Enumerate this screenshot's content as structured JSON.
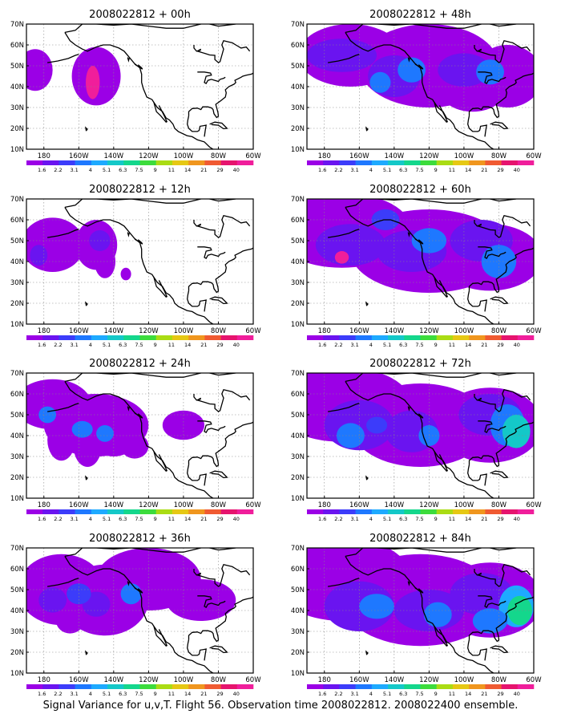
{
  "figure": {
    "caption": "Signal Variance for u,v,T. Flight 56. Observation time 2008022812. 2008022400 ensemble.",
    "colorbar_labels": [
      "1.6",
      "2.2",
      "3.1",
      "4",
      "5.1",
      "6.3",
      "7.5",
      "9",
      "11",
      "14",
      "21",
      "29",
      "40"
    ],
    "colorbar_colors": [
      "#9b00e6",
      "#6a14f0",
      "#3c3cfa",
      "#1e78ff",
      "#1eaaff",
      "#14c8c8",
      "#14d78c",
      "#3cdc3c",
      "#aadc14",
      "#e6c814",
      "#f0961e",
      "#f05a32",
      "#e6146e",
      "#f01e9b"
    ],
    "lat_labels": [
      "70N",
      "60N",
      "50N",
      "40N",
      "30N",
      "20N",
      "10N"
    ],
    "lon_labels": [
      "180",
      "160W",
      "140W",
      "120W",
      "100W",
      "80W",
      "60W"
    ],
    "colors": {
      "map_outline": "#000000",
      "grid": "#888888"
    }
  },
  "chart_data": [
    {
      "type": "heatmap",
      "title": "2008022812 + 00h",
      "lon_range": [
        -190,
        -60
      ],
      "lat_range": [
        10,
        70
      ]
    },
    {
      "type": "heatmap",
      "title": "2008022812 + 12h",
      "lon_range": [
        -190,
        -60
      ],
      "lat_range": [
        10,
        70
      ]
    },
    {
      "type": "heatmap",
      "title": "2008022812 + 24h",
      "lon_range": [
        -190,
        -60
      ],
      "lat_range": [
        10,
        70
      ]
    },
    {
      "type": "heatmap",
      "title": "2008022812 + 36h",
      "lon_range": [
        -190,
        -60
      ],
      "lat_range": [
        10,
        70
      ]
    },
    {
      "type": "heatmap",
      "title": "2008022812 + 48h",
      "lon_range": [
        -190,
        -60
      ],
      "lat_range": [
        10,
        70
      ]
    },
    {
      "type": "heatmap",
      "title": "2008022812 + 60h",
      "lon_range": [
        -190,
        -60
      ],
      "lat_range": [
        10,
        70
      ]
    },
    {
      "type": "heatmap",
      "title": "2008022812 + 72h",
      "lon_range": [
        -190,
        -60
      ],
      "lat_range": [
        10,
        70
      ]
    },
    {
      "type": "heatmap",
      "title": "2008022812 + 84h",
      "lon_range": [
        -190,
        -60
      ],
      "lat_range": [
        10,
        70
      ]
    }
  ]
}
